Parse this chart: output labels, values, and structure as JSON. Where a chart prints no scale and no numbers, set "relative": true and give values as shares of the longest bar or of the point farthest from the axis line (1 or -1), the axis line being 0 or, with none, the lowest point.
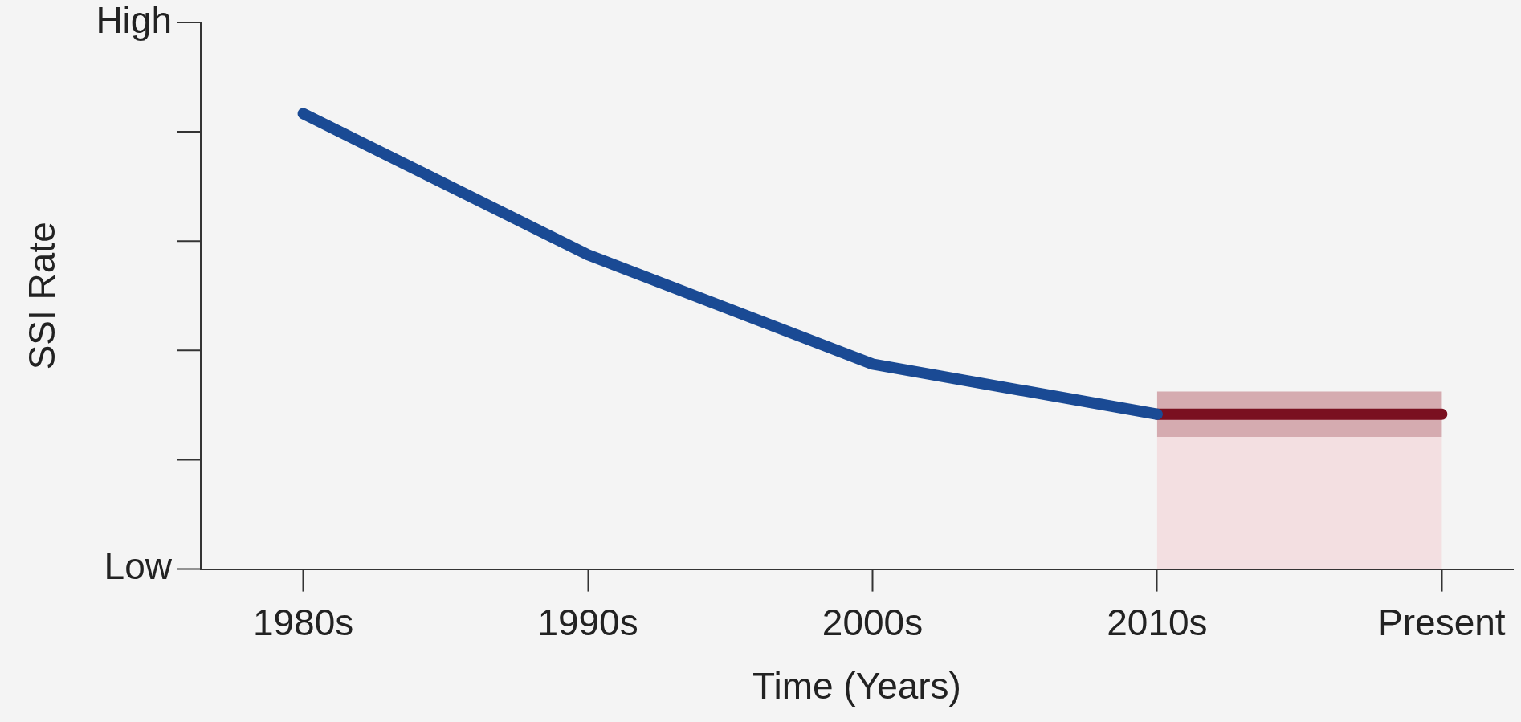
{
  "chart_data": {
    "type": "line",
    "xlabel": "Time (Years)",
    "ylabel": "SSI Rate",
    "categories": [
      "1980s",
      "1990s",
      "2000s",
      "2010s",
      "Present"
    ],
    "relative": true,
    "annotations": [
      "High",
      "Low"
    ],
    "series": [
      {
        "color": "#1a4a94",
        "values": [
          1,
          0.69,
          0.45,
          0.34,
          null
        ]
      },
      {
        "color": "#7a1020",
        "values": [
          null,
          null,
          null,
          0.34,
          0.34
        ],
        "lower": [
          null,
          null,
          null,
          0.29,
          0.29
        ],
        "upper": [
          null,
          null,
          null,
          0.39,
          0.39
        ]
      }
    ],
    "bands": [
      {
        "axis": "x",
        "from": "2010s",
        "to": "Present",
        "color": "#f3dfe1"
      }
    ],
    "grid": false,
    "legend": false,
    "marker": "none",
    "line_style": "solid"
  }
}
